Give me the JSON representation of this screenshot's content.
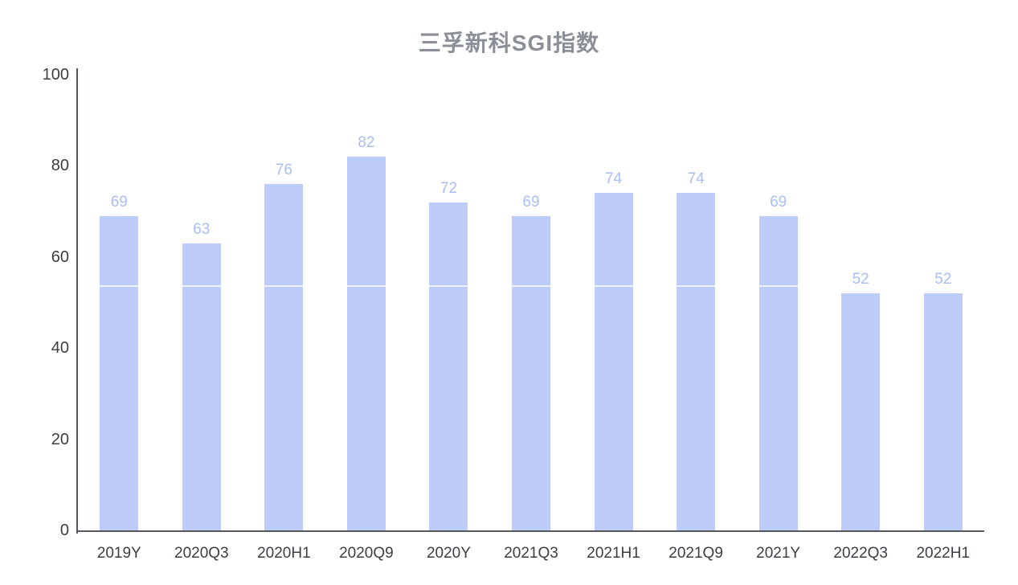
{
  "chart_data": {
    "type": "bar",
    "title": "三孚新科SGI指数",
    "categories": [
      "2019Y",
      "2020Q3",
      "2020H1",
      "2020Q9",
      "2020Y",
      "2021Q3",
      "2021H1",
      "2021Q9",
      "2021Y",
      "2022Q3",
      "2022H1"
    ],
    "values": [
      69,
      63,
      76,
      82,
      72,
      69,
      74,
      74,
      69,
      52,
      52
    ],
    "bar_labels": [
      "69",
      "63",
      "76",
      "82",
      "72",
      "69",
      "74",
      "74",
      "69",
      "52",
      "52"
    ],
    "xlabel": "",
    "ylabel": "",
    "ylim": [
      0,
      100
    ],
    "yticks": [
      0,
      20,
      40,
      60,
      80,
      100
    ],
    "grid": false,
    "legend": "none",
    "reference_line_value": 53.5,
    "colors": {
      "background": "#ffffff",
      "bar_fill": "#bdccf8",
      "value_label": "#a9bef2",
      "title": "#8b8f98",
      "axis_label": "#3b3e44",
      "axis_line": "#55585f",
      "reference_line": "rgba(255,255,255,0.75)"
    }
  }
}
